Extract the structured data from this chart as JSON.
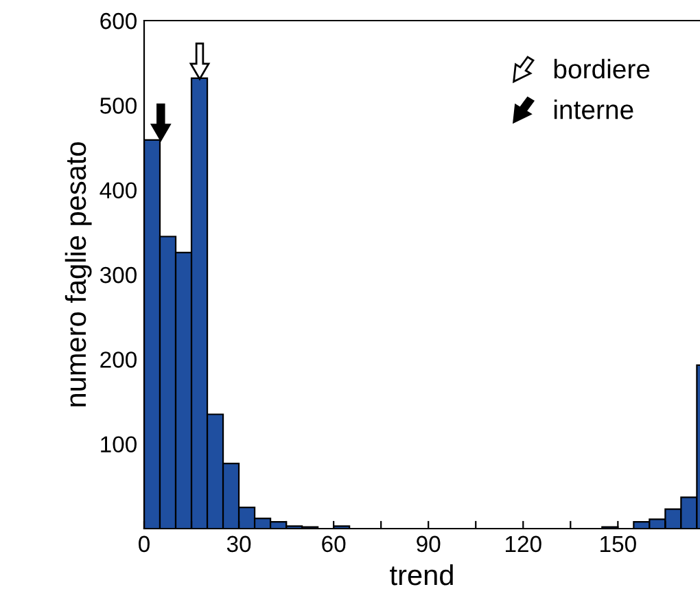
{
  "chart_data": {
    "type": "histogram",
    "xlabel": "trend",
    "ylabel": "numero faglie pesato",
    "bins": [
      0,
      5,
      10,
      15,
      20,
      25,
      30,
      35,
      40,
      45,
      50,
      55,
      60,
      65,
      70,
      75,
      80,
      85,
      90,
      95,
      100,
      105,
      110,
      115,
      120,
      125,
      130,
      135,
      140,
      145,
      150,
      155,
      160,
      165,
      170,
      175,
      180
    ],
    "values": [
      459,
      345,
      326,
      532,
      135,
      77,
      25,
      12,
      8,
      3,
      2,
      0,
      3,
      0,
      0,
      0,
      0,
      0,
      0,
      0,
      0,
      0,
      0,
      0,
      0,
      0,
      0,
      0,
      0,
      2,
      0,
      8,
      11,
      23,
      37,
      193
    ],
    "color": "#1f4fa0",
    "xlim": [
      0,
      176
    ],
    "xticks": [
      0,
      {
        "value": 15,
        "label": null
      },
      30,
      {
        "value": 45,
        "label": null
      },
      60,
      {
        "value": 75,
        "label": null
      },
      90,
      {
        "value": 105,
        "label": null
      },
      120,
      {
        "value": 135,
        "label": null
      },
      150,
      {
        "value": 165,
        "label": null
      }
    ],
    "ylim": [
      0,
      600
    ],
    "yticks": [
      100,
      200,
      300,
      400,
      500,
      600
    ],
    "annotations": [
      "bordiere",
      "interne"
    ],
    "grid": false,
    "legend": false
  }
}
